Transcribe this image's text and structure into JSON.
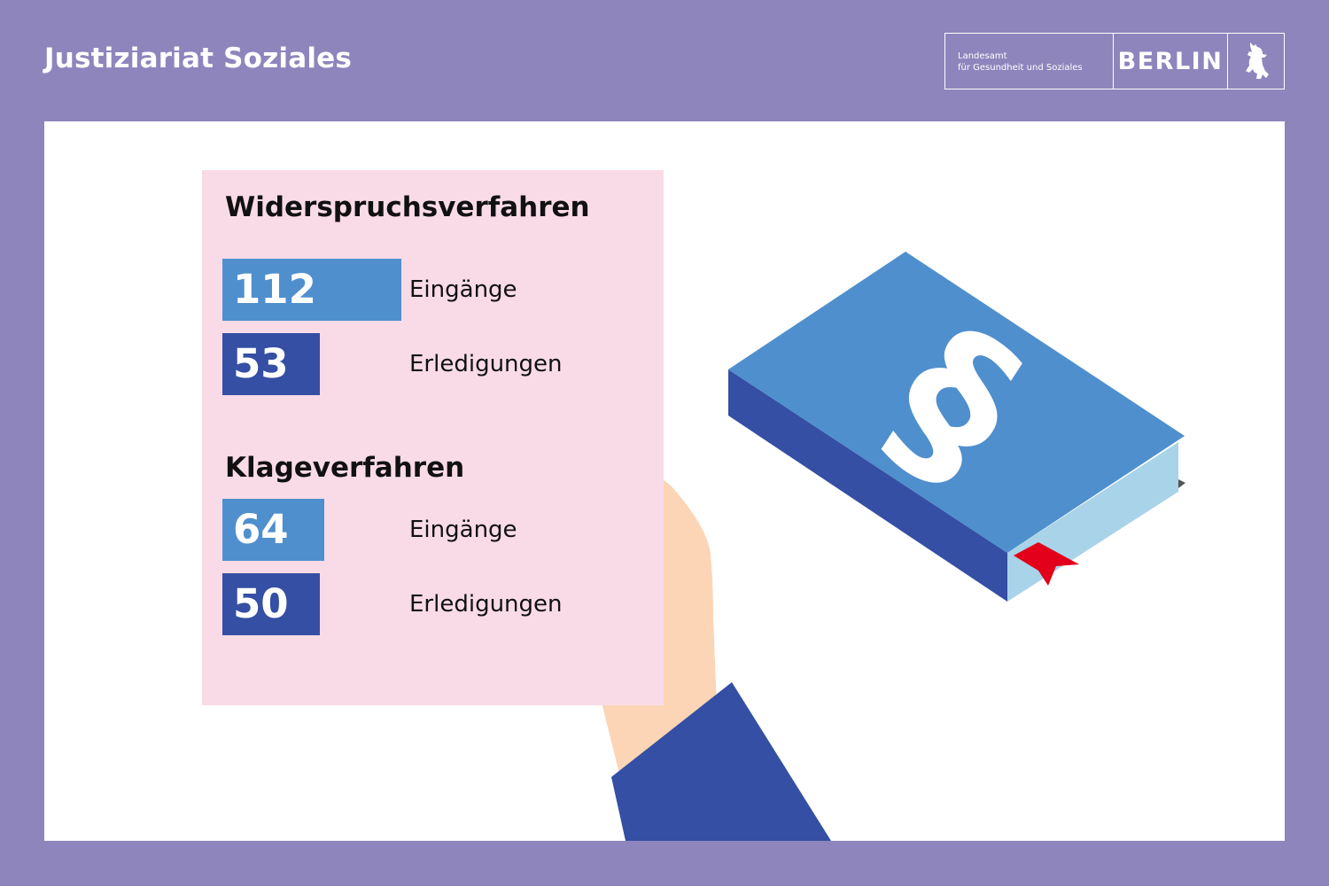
{
  "header": {
    "title": "Justiziariat Soziales",
    "logo": {
      "line1": "Landesamt",
      "line2": "für Gesundheit und Soziales",
      "city": "BERLIN",
      "emblem_icon": "berlin-bear-icon"
    }
  },
  "colors": {
    "background": "#8f85bd",
    "card": "#f9dbe7",
    "incoming_bar": "#4f8fcd",
    "completed_bar": "#344fa3",
    "book_cover": "#4f8fcd",
    "book_spine": "#344fa3",
    "book_pages": "#a8d3e8",
    "bookmark": "#e2001a",
    "hand": "#fbd5b5",
    "sleeve": "#344fa3"
  },
  "icons": {
    "book": "law-book-icon",
    "section_sign": "section-sign-icon",
    "bookmark": "bookmark-icon",
    "hand": "hand-holding-card"
  },
  "chart_data": {
    "type": "bar",
    "orientation": "horizontal",
    "groups": [
      {
        "title": "Widerspruchsverfahren",
        "bars": [
          {
            "label": "Eingänge",
            "value": 112,
            "value_text": "112",
            "kind": "incoming"
          },
          {
            "label": "Erledigungen",
            "value": 53,
            "value_text": "53",
            "kind": "completed"
          }
        ]
      },
      {
        "title": "Klageverfahren",
        "bars": [
          {
            "label": "Eingänge",
            "value": 64,
            "value_text": "64",
            "kind": "incoming"
          },
          {
            "label": "Erledigungen",
            "value": 50,
            "value_text": "50",
            "kind": "completed"
          }
        ]
      }
    ]
  }
}
